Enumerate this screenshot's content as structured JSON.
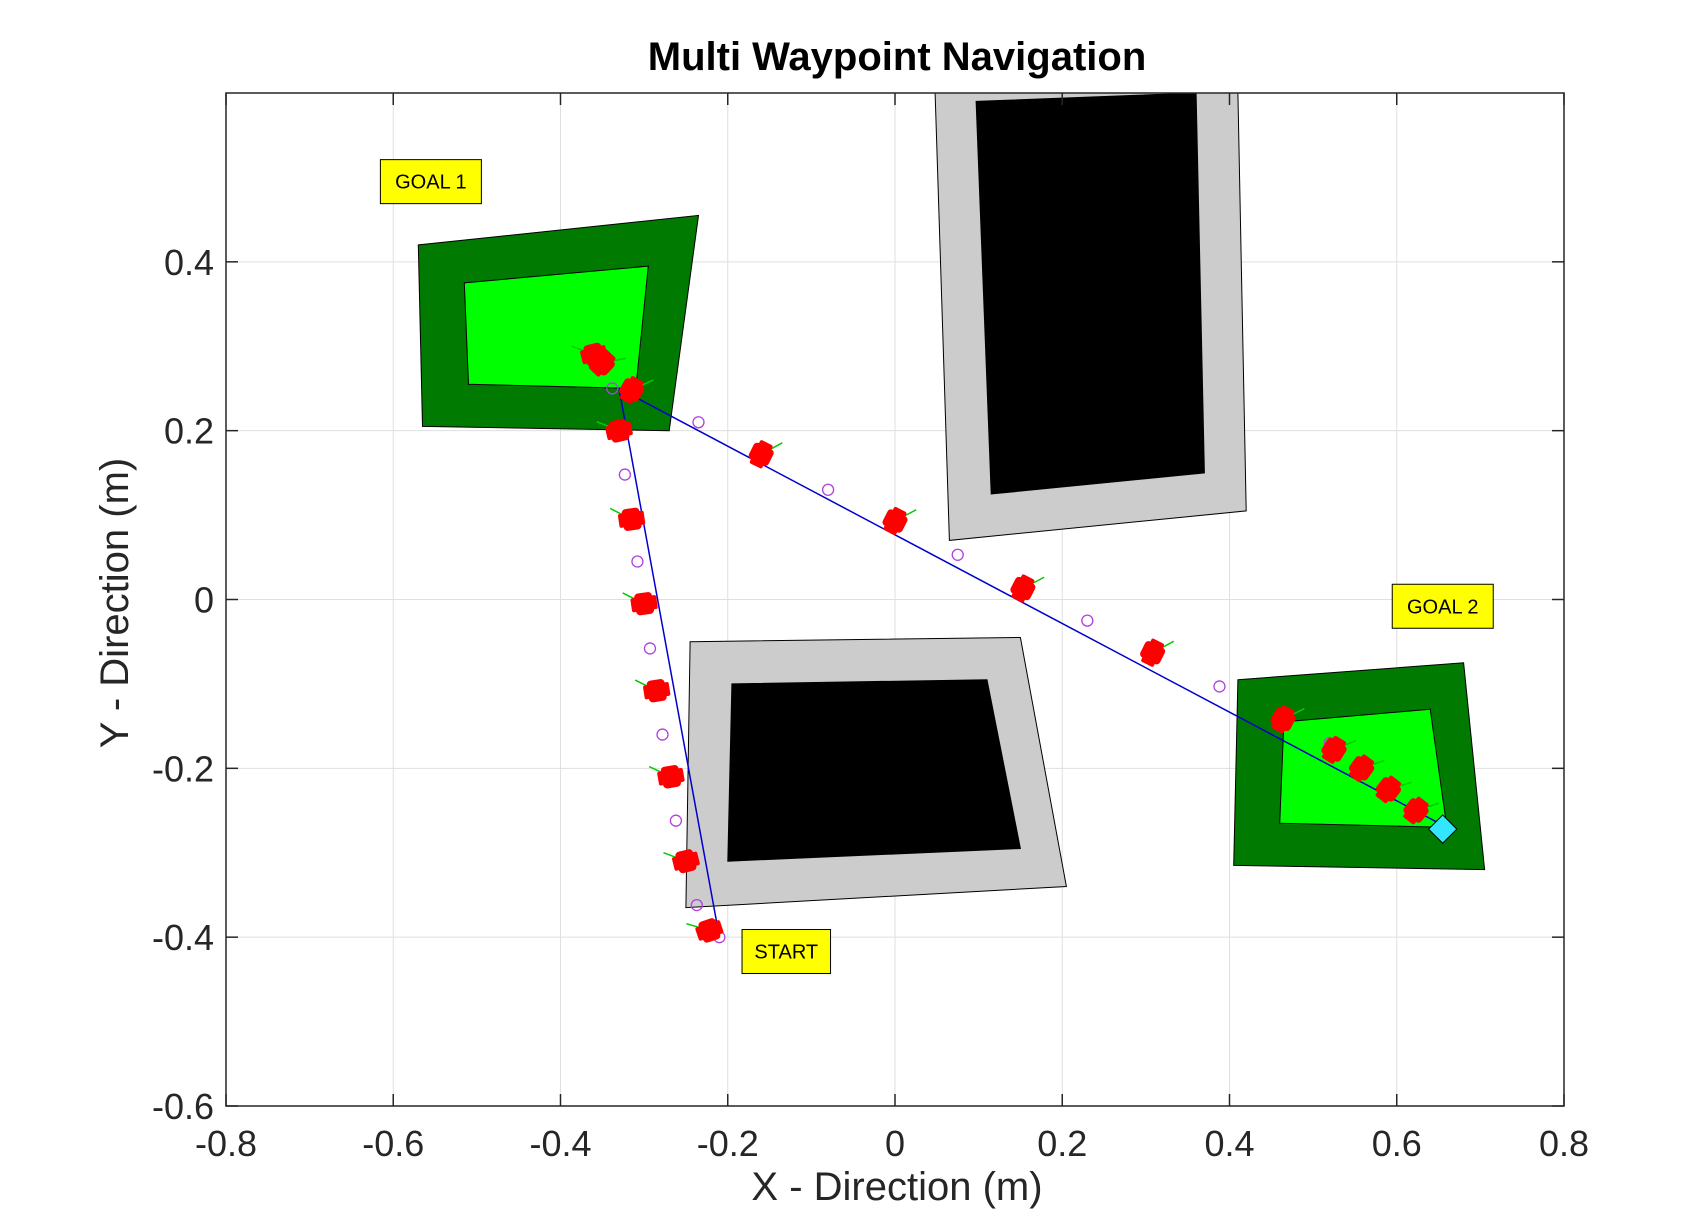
{
  "chart_data": {
    "type": "scatter",
    "title": "Multi Waypoint Navigation",
    "xlabel": "X - Direction (m)",
    "ylabel": "Y - Direction (m)",
    "xlim": [
      -0.8,
      0.8
    ],
    "ylim": [
      -0.6,
      0.6
    ],
    "xticks": [
      -0.8,
      -0.6,
      -0.4,
      -0.2,
      0,
      0.2,
      0.4,
      0.6,
      0.8
    ],
    "yticks": [
      -0.6,
      -0.4,
      -0.2,
      0,
      0.2,
      0.4
    ],
    "xtick_labels": [
      "-0.8",
      "-0.6",
      "-0.4",
      "-0.2",
      "0",
      "0.2",
      "0.4",
      "0.6",
      "0.8"
    ],
    "ytick_labels": [
      "-0.6",
      "-0.4",
      "-0.2",
      "0",
      "0.2",
      "0.4"
    ],
    "grid": true,
    "colors": {
      "goal_outer": "#007a00",
      "goal_inner": "#00ff00",
      "obstacle_outer": "#cccccc",
      "obstacle_inner": "#000000",
      "path": "#0000cc",
      "waypoint_marker": "#b040e0",
      "robot": "#ff0000",
      "heading": "#00cc00",
      "end_marker": "#33e6ff",
      "label_bg": "#ffff00"
    },
    "regions": [
      {
        "kind": "goal",
        "outer": [
          [
            -0.57,
            0.42
          ],
          [
            -0.235,
            0.455
          ],
          [
            -0.27,
            0.2
          ],
          [
            -0.565,
            0.205
          ]
        ],
        "inner": [
          [
            -0.515,
            0.375
          ],
          [
            -0.295,
            0.395
          ],
          [
            -0.31,
            0.25
          ],
          [
            -0.51,
            0.255
          ]
        ]
      },
      {
        "kind": "goal",
        "outer": [
          [
            0.41,
            -0.095
          ],
          [
            0.68,
            -0.075
          ],
          [
            0.705,
            -0.32
          ],
          [
            0.405,
            -0.315
          ]
        ],
        "inner": [
          [
            0.465,
            -0.145
          ],
          [
            0.64,
            -0.13
          ],
          [
            0.66,
            -0.27
          ],
          [
            0.46,
            -0.265
          ]
        ]
      },
      {
        "kind": "obstacle",
        "outer": [
          [
            0.048,
            0.6
          ],
          [
            0.41,
            0.6
          ],
          [
            0.42,
            0.105
          ],
          [
            0.065,
            0.07
          ]
        ],
        "inner": [
          [
            0.097,
            0.59
          ],
          [
            0.36,
            0.6
          ],
          [
            0.37,
            0.15
          ],
          [
            0.115,
            0.125
          ]
        ]
      },
      {
        "kind": "obstacle",
        "outer": [
          [
            -0.245,
            -0.05
          ],
          [
            0.15,
            -0.045
          ],
          [
            0.205,
            -0.34
          ],
          [
            -0.25,
            -0.365
          ]
        ],
        "inner": [
          [
            -0.195,
            -0.1
          ],
          [
            0.11,
            -0.095
          ],
          [
            0.15,
            -0.295
          ],
          [
            -0.2,
            -0.31
          ]
        ]
      }
    ],
    "labels": [
      {
        "text": "GOAL 1",
        "x": -0.555,
        "y": 0.495
      },
      {
        "text": "GOAL 2",
        "x": 0.655,
        "y": -0.008
      },
      {
        "text": "START",
        "x": -0.13,
        "y": -0.417
      }
    ],
    "path": [
      [
        -0.21,
        -0.4
      ],
      [
        -0.33,
        0.25
      ],
      [
        0.66,
        -0.27
      ]
    ],
    "waypoints": [
      [
        -0.21,
        -0.4
      ],
      [
        -0.237,
        -0.362
      ],
      [
        -0.262,
        -0.262
      ],
      [
        -0.278,
        -0.16
      ],
      [
        -0.293,
        -0.058
      ],
      [
        -0.308,
        0.045
      ],
      [
        -0.323,
        0.148
      ],
      [
        -0.338,
        0.25
      ],
      [
        -0.235,
        0.21
      ],
      [
        -0.08,
        0.13
      ],
      [
        0.075,
        0.053
      ],
      [
        0.23,
        -0.025
      ],
      [
        0.388,
        -0.103
      ],
      [
        0.52,
        -0.17
      ]
    ],
    "robot_poses": [
      [
        -0.222,
        -0.392
      ],
      [
        -0.25,
        -0.31
      ],
      [
        -0.268,
        -0.21
      ],
      [
        -0.285,
        -0.108
      ],
      [
        -0.3,
        -0.005
      ],
      [
        -0.315,
        0.095
      ],
      [
        -0.33,
        0.2
      ],
      [
        -0.36,
        0.29
      ],
      [
        -0.35,
        0.28
      ],
      [
        -0.315,
        0.248
      ],
      [
        -0.16,
        0.172
      ],
      [
        0.0,
        0.093
      ],
      [
        0.153,
        0.013
      ],
      [
        0.308,
        -0.063
      ],
      [
        0.464,
        -0.142
      ],
      [
        0.525,
        -0.178
      ],
      [
        0.558,
        -0.2
      ],
      [
        0.59,
        -0.225
      ],
      [
        0.623,
        -0.25
      ]
    ],
    "end_marker": [
      0.655,
      -0.272
    ]
  }
}
